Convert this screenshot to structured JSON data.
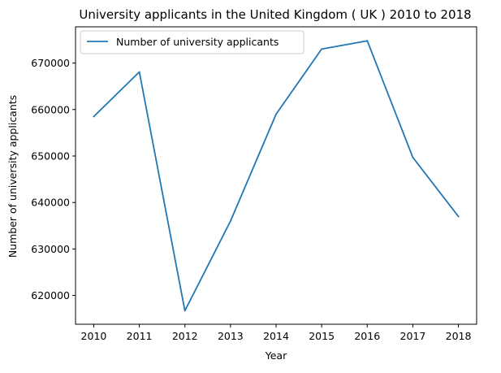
{
  "chart_data": {
    "type": "line",
    "title": "University applicants in the United Kingdom ( UK ) 2010 to 2018",
    "xlabel": "Year",
    "ylabel": "Number of university applicants",
    "x": [
      2010,
      2011,
      2012,
      2013,
      2014,
      2015,
      2016,
      2017,
      2018
    ],
    "x_ticks": [
      "2010",
      "2011",
      "2012",
      "2013",
      "2014",
      "2015",
      "2016",
      "2017",
      "2018"
    ],
    "y_ticks": [
      "620000",
      "630000",
      "640000",
      "650000",
      "660000",
      "670000"
    ],
    "y_tick_values": [
      620000,
      630000,
      640000,
      650000,
      660000,
      670000
    ],
    "xlim": [
      2009.6,
      2018.4
    ],
    "ylim": [
      613800,
      677800
    ],
    "grid": false,
    "legend_position": "upper-left",
    "series": [
      {
        "name": "Number of university applicants",
        "color": "#1f77b4",
        "values": [
          658500,
          668100,
          616700,
          636000,
          659000,
          673000,
          674800,
          649700,
          637000
        ]
      }
    ]
  }
}
